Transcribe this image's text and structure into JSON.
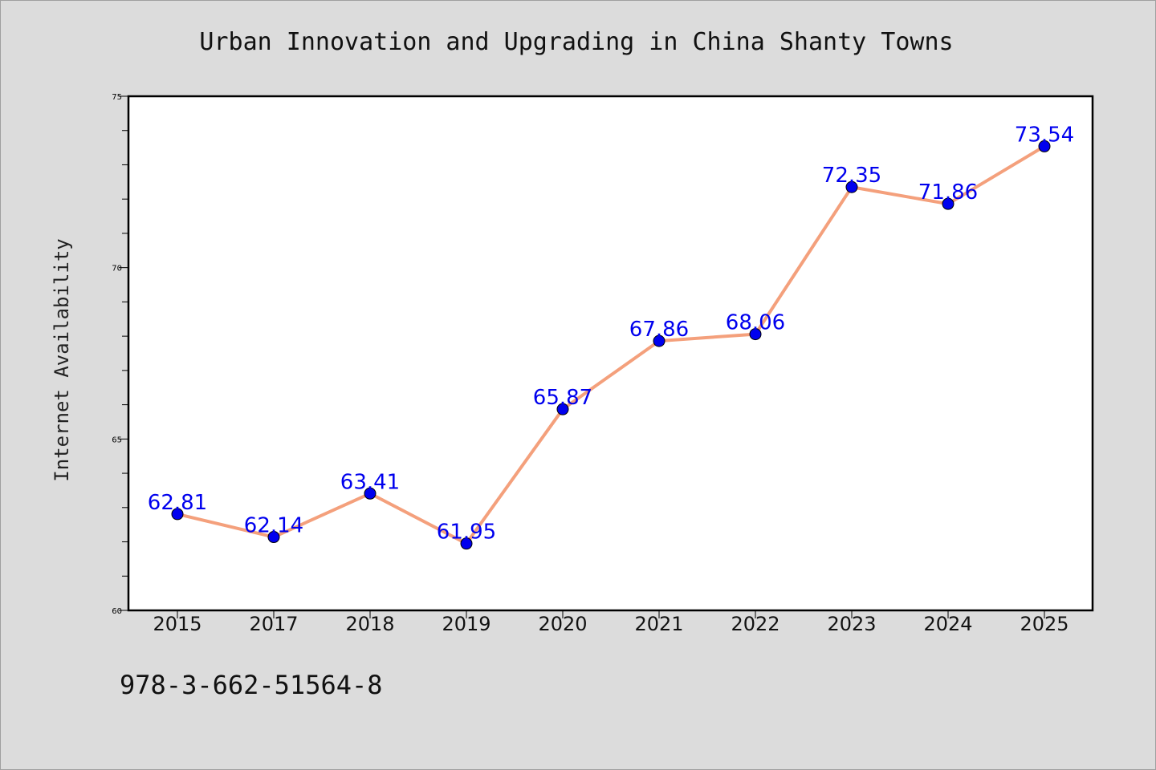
{
  "chart_data": {
    "type": "line",
    "title": "Urban Innovation and Upgrading in China Shanty Towns",
    "xlabel": "",
    "ylabel": "Internet Availability",
    "categories": [
      "2015",
      "2017",
      "2018",
      "2019",
      "2020",
      "2021",
      "2022",
      "2023",
      "2024",
      "2025"
    ],
    "series": [
      {
        "values": [
          62.81,
          62.14,
          63.41,
          61.95,
          65.87,
          67.86,
          68.06,
          72.35,
          71.86,
          73.54
        ]
      }
    ],
    "data_labels": [
      "62.81",
      "62.14",
      "63.41",
      "61.95",
      "65.87",
      "67.86",
      "68.06",
      "72.35",
      "71.86",
      "73.54"
    ],
    "ylim": [
      60,
      75
    ],
    "yticks": [
      "60",
      "65",
      "70",
      "75"
    ],
    "grid": false,
    "line_color": "#f4a07c",
    "marker_color": "#0000ee",
    "label_color": "#0000ee",
    "background_color": "#dcdcdc"
  },
  "footer": {
    "isbn": "978-3-662-51564-8"
  }
}
